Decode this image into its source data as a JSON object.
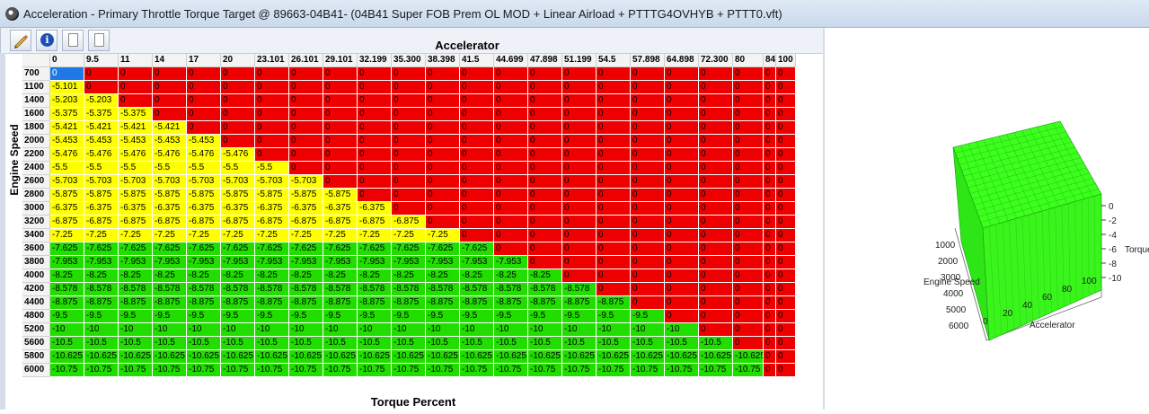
{
  "window": {
    "title": "Acceleration - Primary Throttle Torque Target @ 89663-04B41- (04B41 Super FOB Prem OL MOD + Linear Airload + PTTTG4OVHYB + PTTT0.vft)"
  },
  "toolbar": {
    "buttons": [
      {
        "name": "edit-icon"
      },
      {
        "name": "info-icon",
        "glyph": "i"
      },
      {
        "name": "document-icon"
      },
      {
        "name": "document-icon"
      }
    ]
  },
  "table": {
    "x_axis_title": "Accelerator",
    "y_axis_title": "Engine Speed",
    "bottom_title": "Torque Percent",
    "columns": [
      "0",
      "9.5",
      "11",
      "14",
      "17",
      "20",
      "23.101",
      "26.101",
      "29.101",
      "32.199",
      "35.300",
      "38.398",
      "41.5",
      "44.699",
      "47.898",
      "51.199",
      "54.5",
      "57.898",
      "64.898",
      "72.300",
      "80",
      "84",
      "100"
    ],
    "rows": [
      "700",
      "1100",
      "1400",
      "1600",
      "1800",
      "2000",
      "2200",
      "2400",
      "2600",
      "2800",
      "3000",
      "3200",
      "3400",
      "3600",
      "3800",
      "4000",
      "4200",
      "4400",
      "4800",
      "5200",
      "5600",
      "5800",
      "6000"
    ],
    "row_values": [
      "0",
      "-5.101",
      "-5.203",
      "-5.375",
      "-5.421",
      "-5.453",
      "-5.476",
      "-5.5",
      "-5.703",
      "-5.875",
      "-6.375",
      "-6.875",
      "-7.25",
      "-7.625",
      "-7.953",
      "-8.25",
      "-8.578",
      "-8.875",
      "-9.5",
      "-10",
      "-10.5",
      "-10.625",
      "-10.75"
    ],
    "nonzero_counts": [
      1,
      1,
      2,
      3,
      4,
      5,
      6,
      7,
      8,
      9,
      10,
      11,
      12,
      13,
      14,
      15,
      16,
      17,
      18,
      19,
      20,
      21,
      21
    ],
    "selected_cell": {
      "row": 0,
      "col": 0
    },
    "colors": {
      "zero": "#ee0000",
      "mid": "#ffff00",
      "low": "#22dd00",
      "selected": "#1e78e6"
    }
  },
  "plot3d": {
    "z_label": "Torque",
    "y_label": "Engine Speed",
    "x_label": "Accelerator",
    "z_ticks": [
      "0",
      "-2",
      "-4",
      "-6",
      "-8",
      "-10"
    ],
    "y_ticks": [
      "1000",
      "2000",
      "3000",
      "4000",
      "5000",
      "6000"
    ],
    "x_ticks": [
      "0",
      "20",
      "40",
      "60",
      "80",
      "100"
    ],
    "surface_color": "#33ff1a"
  }
}
